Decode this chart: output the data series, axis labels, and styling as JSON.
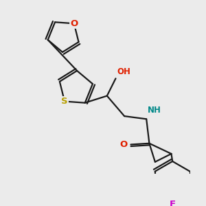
{
  "bg_color": "#ebebeb",
  "bond_color": "#1a1a1a",
  "bond_width": 1.6,
  "atom_colors": {
    "O": "#e02000",
    "S": "#b8a000",
    "N": "#008888",
    "F": "#cc00cc",
    "H_O": "#e02000",
    "H_N": "#008888"
  },
  "font_size": 8.5,
  "figsize": [
    3.0,
    3.0
  ],
  "dpi": 100
}
